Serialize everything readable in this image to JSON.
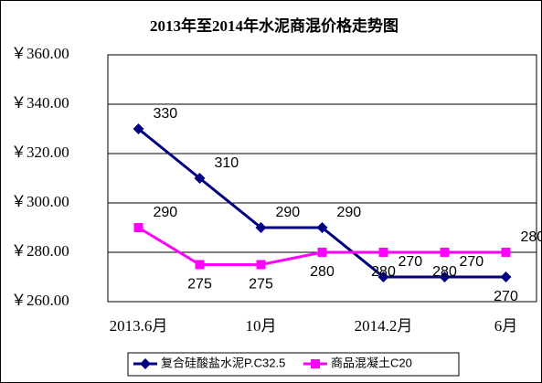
{
  "chart_data": {
    "type": "line",
    "title": "2013年至2014年水泥商混价格走势图",
    "categories": [
      "2013.6月",
      null,
      "10月",
      null,
      "2014.2月",
      null,
      "6月"
    ],
    "series": [
      {
        "name": "复合硅酸盐水泥P.C32.5",
        "color": "#000080",
        "values": [
          330,
          310,
          290,
          290,
          270,
          270,
          270
        ]
      },
      {
        "name": "商品混凝土C20",
        "color": "#ff00ff",
        "values": [
          290,
          275,
          275,
          280,
          280,
          280,
          280
        ]
      }
    ],
    "ylim": [
      260,
      360
    ],
    "yticks": [
      {
        "value": 260,
        "label": "￥260.00"
      },
      {
        "value": 280,
        "label": "￥280.00"
      },
      {
        "value": 300,
        "label": "￥300.00"
      },
      {
        "value": 320,
        "label": "￥320.00"
      },
      {
        "value": 340,
        "label": "￥340.00"
      },
      {
        "value": 360,
        "label": "￥360.00"
      }
    ],
    "grid": true,
    "legend": "bottom"
  }
}
